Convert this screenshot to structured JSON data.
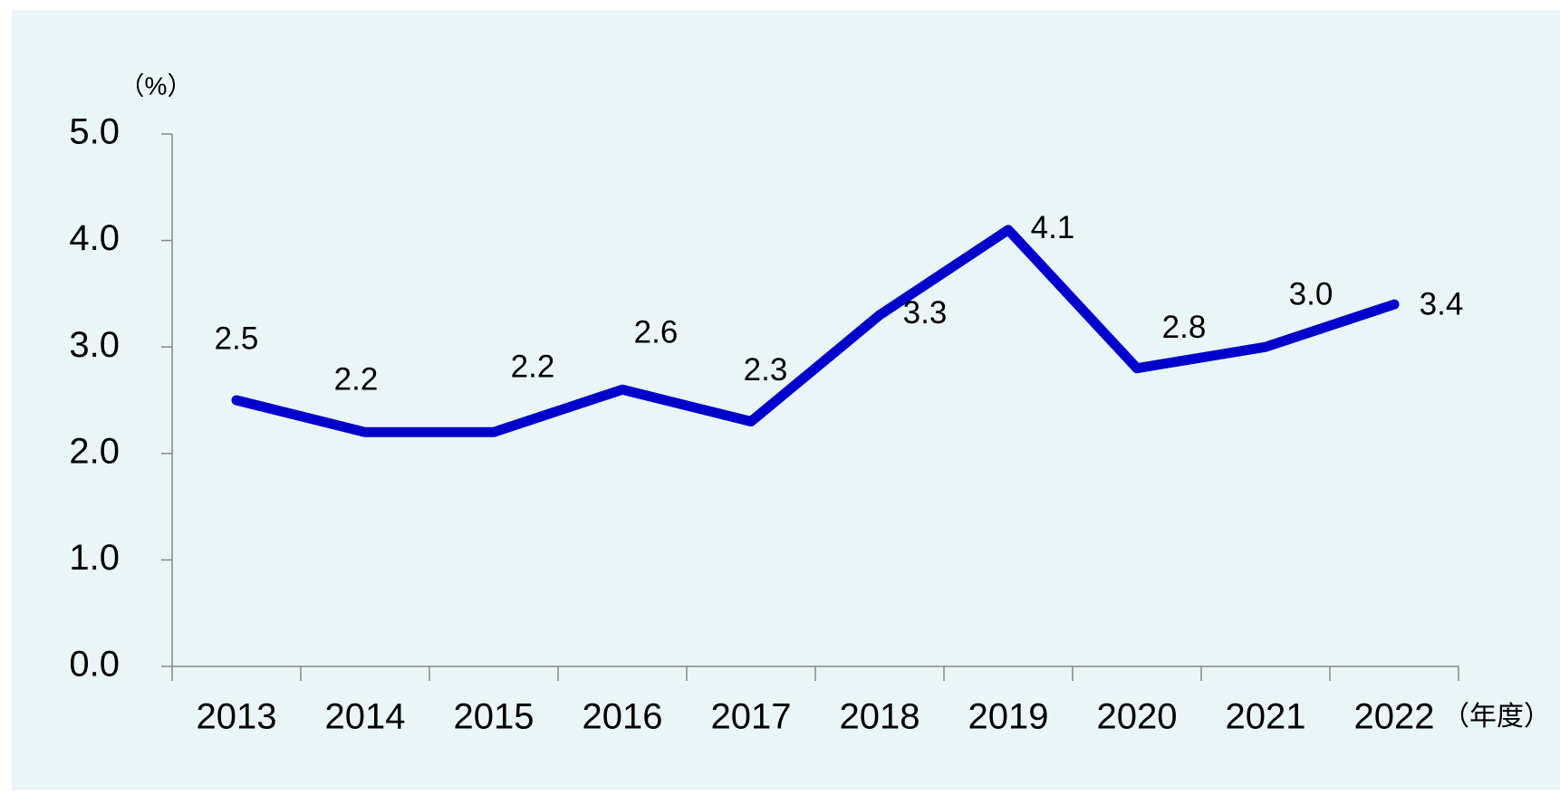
{
  "chart_data": {
    "type": "line",
    "y_label": "（%）",
    "x_label": "（年度）",
    "categories": [
      "2013",
      "2014",
      "2015",
      "2016",
      "2017",
      "2018",
      "2019",
      "2020",
      "2021",
      "2022"
    ],
    "series": [
      {
        "color": "#0000cc",
        "values": [
          2.5,
          2.2,
          2.2,
          2.6,
          2.3,
          3.3,
          4.1,
          2.8,
          3.0,
          3.4
        ],
        "value_labels": [
          "2.5",
          "2.2",
          "2.2",
          "2.6",
          "2.3",
          "3.3",
          "4.1",
          "2.8",
          "3.0",
          "3.4"
        ]
      }
    ],
    "ylim": [
      0,
      5
    ],
    "yticks": [
      {
        "value": 0,
        "label": "0.0"
      },
      {
        "value": 1,
        "label": "1.0"
      },
      {
        "value": 2,
        "label": "2.0"
      },
      {
        "value": 3,
        "label": "3.0"
      },
      {
        "value": 4,
        "label": "4.0"
      },
      {
        "value": 5,
        "label": "5.0"
      }
    ]
  }
}
